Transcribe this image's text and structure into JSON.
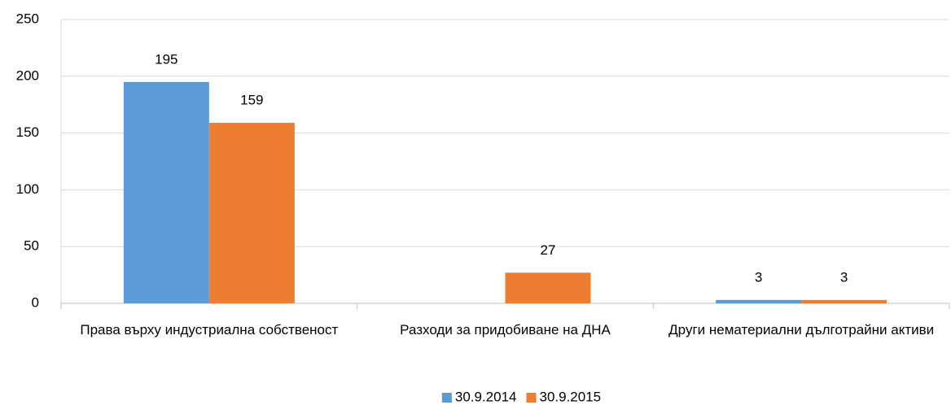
{
  "chart_data": {
    "type": "bar",
    "categories": [
      "Права върху индустриална собственост",
      "Разходи за придобиване на ДНА",
      "Други нематериални дълготрайни активи"
    ],
    "series": [
      {
        "name": "30.9.2014",
        "color": "#5b9bd5",
        "values": [
          195,
          null,
          3
        ]
      },
      {
        "name": "30.9.2015",
        "color": "#ed7d31",
        "values": [
          159,
          27,
          3
        ]
      }
    ],
    "ylim": [
      0,
      250
    ],
    "yticks": [
      0,
      50,
      100,
      150,
      200,
      250
    ],
    "grid": true,
    "legend": "bottom"
  }
}
